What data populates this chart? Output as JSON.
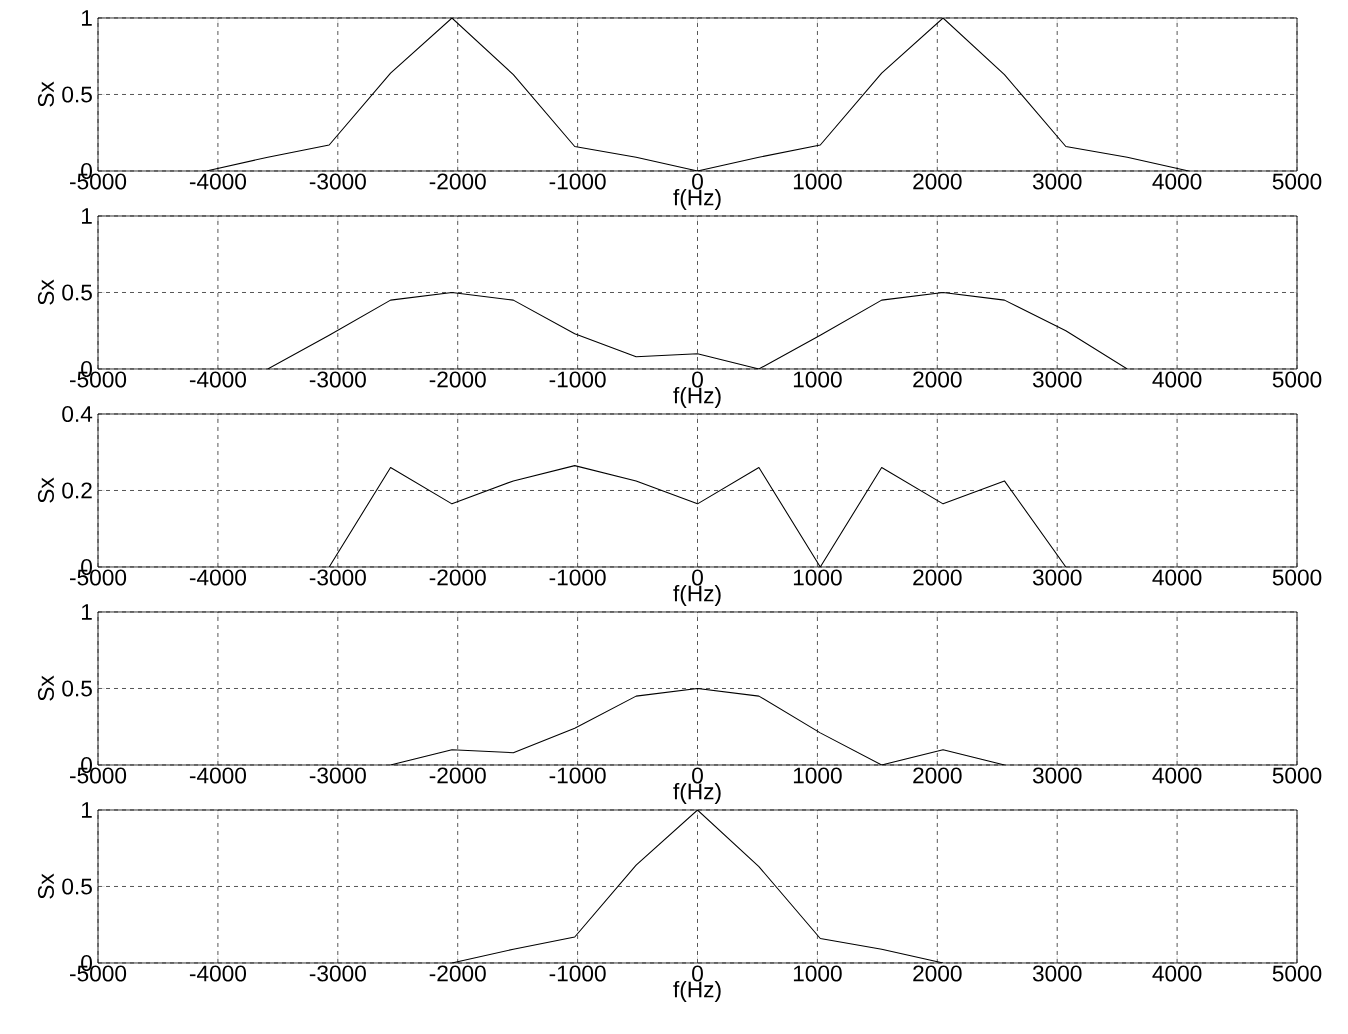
{
  "chart_data": [
    {
      "type": "line",
      "xlabel": "f(Hz)",
      "ylabel": "Sx",
      "grid": true,
      "xlim": [
        -5000,
        5000
      ],
      "ylim": [
        0,
        1
      ],
      "xticks": [
        -5000,
        -4000,
        -3000,
        -2000,
        -1000,
        0,
        1000,
        2000,
        3000,
        4000,
        5000
      ],
      "yticks": [
        0,
        0.5,
        1
      ],
      "series": [
        {
          "color": "#000000",
          "x": [
            -4096,
            -3584,
            -3072,
            -2560,
            -2048,
            -1536,
            -1024,
            -512,
            0,
            512,
            1024,
            1536,
            2048,
            2560,
            3072,
            3584,
            4096
          ],
          "values": [
            0,
            0.09,
            0.17,
            0.64,
            1,
            0.63,
            0.16,
            0.09,
            0,
            0.09,
            0.17,
            0.64,
            1,
            0.63,
            0.16,
            0.09,
            0
          ]
        }
      ]
    },
    {
      "type": "line",
      "xlabel": "f(Hz)",
      "ylabel": "Sx",
      "grid": true,
      "xlim": [
        -5000,
        5000
      ],
      "ylim": [
        0,
        1
      ],
      "xticks": [
        -5000,
        -4000,
        -3000,
        -2000,
        -1000,
        0,
        1000,
        2000,
        3000,
        4000,
        5000
      ],
      "yticks": [
        0,
        0.5,
        1
      ],
      "series": [
        {
          "color": "#000000",
          "x": [
            -3584,
            -3072,
            -2560,
            -2048,
            -1536,
            -1024,
            -512,
            0,
            512,
            1024,
            1536,
            2048,
            2560,
            3072,
            3584
          ],
          "values": [
            0,
            0.22,
            0.45,
            0.5,
            0.45,
            0.23,
            0.08,
            0.1,
            0,
            0.22,
            0.45,
            0.5,
            0.45,
            0.25,
            0
          ]
        }
      ]
    },
    {
      "type": "line",
      "xlabel": "f(Hz)",
      "ylabel": "Sx",
      "grid": true,
      "xlim": [
        -5000,
        5000
      ],
      "ylim": [
        0,
        0.4
      ],
      "xticks": [
        -5000,
        -4000,
        -3000,
        -2000,
        -1000,
        0,
        1000,
        2000,
        3000,
        4000,
        5000
      ],
      "yticks": [
        0,
        0.2,
        0.4
      ],
      "series": [
        {
          "color": "#000000",
          "x": [
            -3072,
            -2560,
            -2048,
            -1536,
            -1024,
            -512,
            0,
            512,
            1024,
            1536,
            2048,
            2560,
            3072
          ],
          "values": [
            0,
            0.26,
            0.165,
            0.225,
            0.265,
            0.225,
            0.165,
            0.26,
            0,
            0.26,
            0.165,
            0.225,
            0
          ]
        }
      ]
    },
    {
      "type": "line",
      "xlabel": "f(Hz)",
      "ylabel": "Sx",
      "grid": true,
      "xlim": [
        -5000,
        5000
      ],
      "ylim": [
        0,
        1
      ],
      "xticks": [
        -5000,
        -4000,
        -3000,
        -2000,
        -1000,
        0,
        1000,
        2000,
        3000,
        4000,
        5000
      ],
      "yticks": [
        0,
        0.5,
        1
      ],
      "series": [
        {
          "color": "#000000",
          "x": [
            -2560,
            -2048,
            -1536,
            -1024,
            -512,
            0,
            512,
            1024,
            1536,
            2048,
            2560
          ],
          "values": [
            0,
            0.1,
            0.08,
            0.24,
            0.45,
            0.5,
            0.45,
            0.21,
            0,
            0.1,
            0
          ]
        }
      ]
    },
    {
      "type": "line",
      "xlabel": "f(Hz)",
      "ylabel": "Sx",
      "grid": true,
      "xlim": [
        -5000,
        5000
      ],
      "ylim": [
        0,
        1
      ],
      "xticks": [
        -5000,
        -4000,
        -3000,
        -2000,
        -1000,
        0,
        1000,
        2000,
        3000,
        4000,
        5000
      ],
      "yticks": [
        0,
        0.5,
        1
      ],
      "series": [
        {
          "color": "#000000",
          "x": [
            -2048,
            -1536,
            -1024,
            -512,
            0,
            512,
            1024,
            1536,
            2048
          ],
          "values": [
            0,
            0.09,
            0.17,
            0.64,
            1,
            0.63,
            0.16,
            0.09,
            0
          ]
        }
      ]
    }
  ]
}
